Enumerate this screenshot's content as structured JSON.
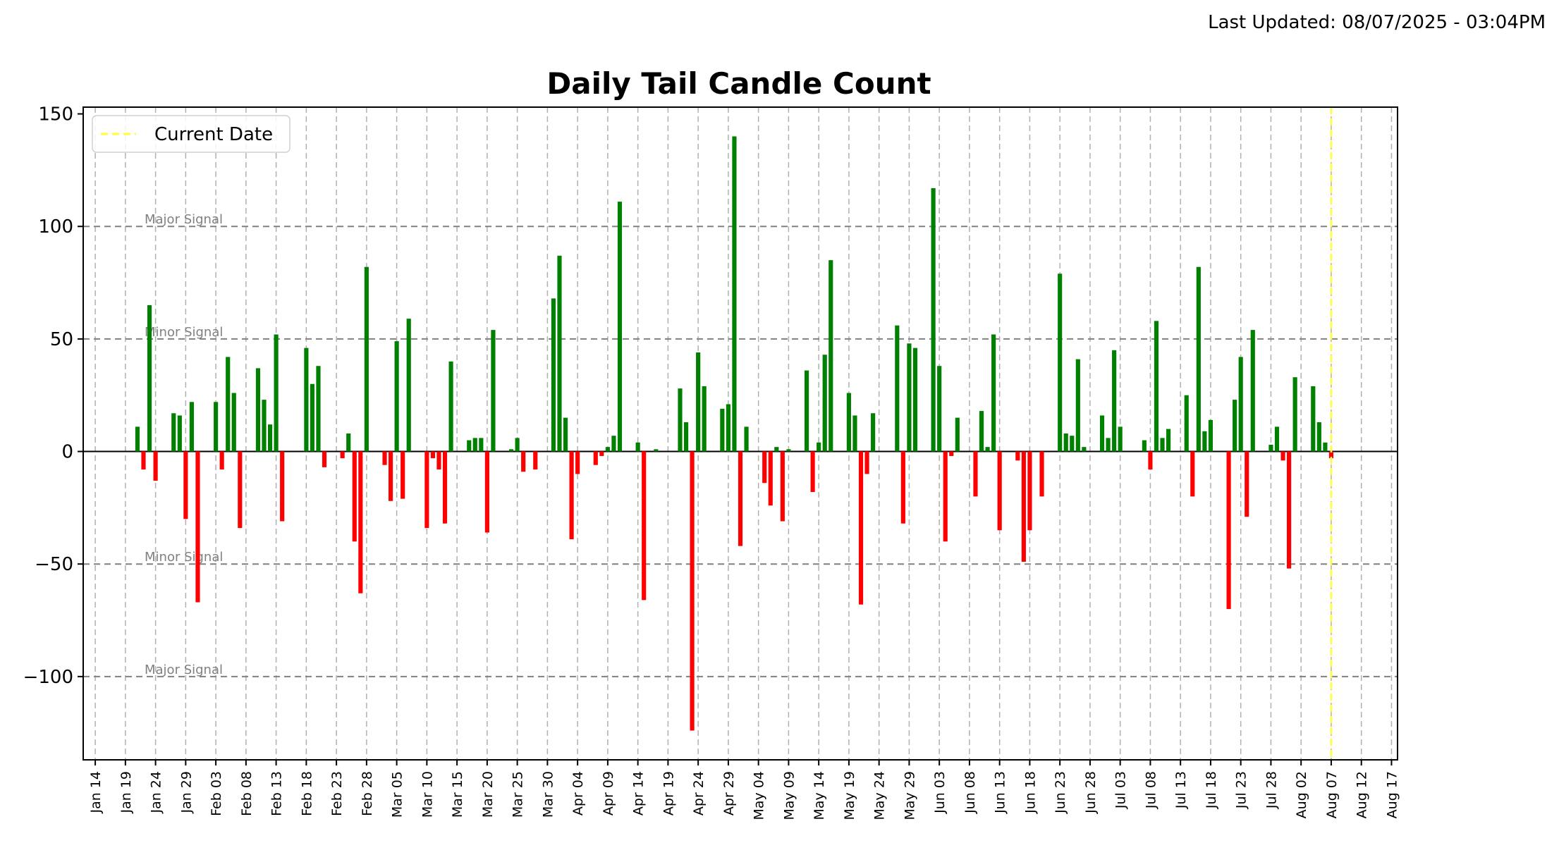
{
  "header": {
    "last_updated": "Last Updated: 08/07/2025 - 03:04PM"
  },
  "chart_data": {
    "type": "bar",
    "title": "Daily Tail Candle Count",
    "xlabel": "",
    "ylabel": "",
    "x_is_date": true,
    "year": 2025,
    "xlim": [
      "2025-01-12",
      "2025-08-18"
    ],
    "ylim": [
      -137,
      153
    ],
    "yticks": [
      -100,
      -50,
      0,
      50,
      100,
      150
    ],
    "xticks": [
      "Jan 14",
      "Jan 19",
      "Jan 24",
      "Jan 29",
      "Feb 03",
      "Feb 08",
      "Feb 13",
      "Feb 18",
      "Feb 23",
      "Feb 28",
      "Mar 05",
      "Mar 10",
      "Mar 15",
      "Mar 20",
      "Mar 25",
      "Mar 30",
      "Apr 04",
      "Apr 09",
      "Apr 14",
      "Apr 19",
      "Apr 24",
      "Apr 29",
      "May 04",
      "May 09",
      "May 14",
      "May 19",
      "May 24",
      "May 29",
      "Jun 03",
      "Jun 08",
      "Jun 13",
      "Jun 18",
      "Jun 23",
      "Jun 28",
      "Jul 03",
      "Jul 08",
      "Jul 13",
      "Jul 18",
      "Jul 23",
      "Jul 28",
      "Aug 02",
      "Aug 07",
      "Aug 12",
      "Aug 17"
    ],
    "grid": {
      "x": true,
      "y": false
    },
    "legend": {
      "position": "top-left",
      "entries": [
        "Current Date"
      ]
    },
    "colors": {
      "positive": "#008000",
      "negative": "#ff0000",
      "current_date": "#ffff33",
      "reference": "#808080"
    },
    "reference_lines": [
      {
        "y": 100,
        "label": "Major Signal"
      },
      {
        "y": 50,
        "label": "Minor Signal"
      },
      {
        "y": -50,
        "label": "Minor Signal"
      },
      {
        "y": -100,
        "label": "Major Signal"
      }
    ],
    "current_date": "2025-08-07",
    "series": [
      {
        "points": [
          {
            "x": "2025-01-21",
            "y": 11
          },
          {
            "x": "2025-01-22",
            "y": -8
          },
          {
            "x": "2025-01-23",
            "y": 65
          },
          {
            "x": "2025-01-24",
            "y": -13
          },
          {
            "x": "2025-01-27",
            "y": 17
          },
          {
            "x": "2025-01-28",
            "y": 16
          },
          {
            "x": "2025-01-29",
            "y": -30
          },
          {
            "x": "2025-01-30",
            "y": 22
          },
          {
            "x": "2025-01-31",
            "y": -67
          },
          {
            "x": "2025-02-03",
            "y": 22
          },
          {
            "x": "2025-02-04",
            "y": -8
          },
          {
            "x": "2025-02-05",
            "y": 42
          },
          {
            "x": "2025-02-06",
            "y": 26
          },
          {
            "x": "2025-02-07",
            "y": -34
          },
          {
            "x": "2025-02-10",
            "y": 37
          },
          {
            "x": "2025-02-11",
            "y": 23
          },
          {
            "x": "2025-02-12",
            "y": 12
          },
          {
            "x": "2025-02-13",
            "y": 52
          },
          {
            "x": "2025-02-14",
            "y": -31
          },
          {
            "x": "2025-02-18",
            "y": 46
          },
          {
            "x": "2025-02-19",
            "y": 30
          },
          {
            "x": "2025-02-20",
            "y": 38
          },
          {
            "x": "2025-02-21",
            "y": -7
          },
          {
            "x": "2025-02-24",
            "y": -3
          },
          {
            "x": "2025-02-25",
            "y": 8
          },
          {
            "x": "2025-02-26",
            "y": -40
          },
          {
            "x": "2025-02-27",
            "y": -63
          },
          {
            "x": "2025-02-28",
            "y": 82
          },
          {
            "x": "2025-03-03",
            "y": -6
          },
          {
            "x": "2025-03-04",
            "y": -22
          },
          {
            "x": "2025-03-05",
            "y": 49
          },
          {
            "x": "2025-03-06",
            "y": -21
          },
          {
            "x": "2025-03-07",
            "y": 59
          },
          {
            "x": "2025-03-10",
            "y": -34
          },
          {
            "x": "2025-03-11",
            "y": -3
          },
          {
            "x": "2025-03-12",
            "y": -8
          },
          {
            "x": "2025-03-13",
            "y": -32
          },
          {
            "x": "2025-03-14",
            "y": 40
          },
          {
            "x": "2025-03-17",
            "y": 5
          },
          {
            "x": "2025-03-18",
            "y": 6
          },
          {
            "x": "2025-03-19",
            "y": 6
          },
          {
            "x": "2025-03-20",
            "y": -36
          },
          {
            "x": "2025-03-21",
            "y": 54
          },
          {
            "x": "2025-03-24",
            "y": 1
          },
          {
            "x": "2025-03-25",
            "y": 6
          },
          {
            "x": "2025-03-26",
            "y": -9
          },
          {
            "x": "2025-03-28",
            "y": -8
          },
          {
            "x": "2025-03-31",
            "y": 68
          },
          {
            "x": "2025-04-01",
            "y": 87
          },
          {
            "x": "2025-04-02",
            "y": 15
          },
          {
            "x": "2025-04-03",
            "y": -39
          },
          {
            "x": "2025-04-04",
            "y": -10
          },
          {
            "x": "2025-04-07",
            "y": -6
          },
          {
            "x": "2025-04-08",
            "y": -2
          },
          {
            "x": "2025-04-09",
            "y": 2
          },
          {
            "x": "2025-04-10",
            "y": 7
          },
          {
            "x": "2025-04-11",
            "y": 111
          },
          {
            "x": "2025-04-14",
            "y": 4
          },
          {
            "x": "2025-04-15",
            "y": -66
          },
          {
            "x": "2025-04-17",
            "y": 1
          },
          {
            "x": "2025-04-21",
            "y": 28
          },
          {
            "x": "2025-04-22",
            "y": 13
          },
          {
            "x": "2025-04-23",
            "y": -124
          },
          {
            "x": "2025-04-24",
            "y": 44
          },
          {
            "x": "2025-04-25",
            "y": 29
          },
          {
            "x": "2025-04-28",
            "y": 19
          },
          {
            "x": "2025-04-29",
            "y": 21
          },
          {
            "x": "2025-04-30",
            "y": 140
          },
          {
            "x": "2025-05-01",
            "y": -42
          },
          {
            "x": "2025-05-02",
            "y": 11
          },
          {
            "x": "2025-05-05",
            "y": -14
          },
          {
            "x": "2025-05-06",
            "y": -24
          },
          {
            "x": "2025-05-07",
            "y": 2
          },
          {
            "x": "2025-05-08",
            "y": -31
          },
          {
            "x": "2025-05-09",
            "y": 1
          },
          {
            "x": "2025-05-12",
            "y": 36
          },
          {
            "x": "2025-05-13",
            "y": -18
          },
          {
            "x": "2025-05-14",
            "y": 4
          },
          {
            "x": "2025-05-15",
            "y": 43
          },
          {
            "x": "2025-05-16",
            "y": 85
          },
          {
            "x": "2025-05-19",
            "y": 26
          },
          {
            "x": "2025-05-20",
            "y": 16
          },
          {
            "x": "2025-05-21",
            "y": -68
          },
          {
            "x": "2025-05-22",
            "y": -10
          },
          {
            "x": "2025-05-23",
            "y": 17
          },
          {
            "x": "2025-05-27",
            "y": 56
          },
          {
            "x": "2025-05-28",
            "y": -32
          },
          {
            "x": "2025-05-29",
            "y": 48
          },
          {
            "x": "2025-05-30",
            "y": 46
          },
          {
            "x": "2025-06-02",
            "y": 117
          },
          {
            "x": "2025-06-03",
            "y": 38
          },
          {
            "x": "2025-06-04",
            "y": -40
          },
          {
            "x": "2025-06-05",
            "y": -2
          },
          {
            "x": "2025-06-06",
            "y": 15
          },
          {
            "x": "2025-06-09",
            "y": -20
          },
          {
            "x": "2025-06-10",
            "y": 18
          },
          {
            "x": "2025-06-11",
            "y": 2
          },
          {
            "x": "2025-06-12",
            "y": 52
          },
          {
            "x": "2025-06-13",
            "y": -35
          },
          {
            "x": "2025-06-16",
            "y": -4
          },
          {
            "x": "2025-06-17",
            "y": -49
          },
          {
            "x": "2025-06-18",
            "y": -35
          },
          {
            "x": "2025-06-20",
            "y": -20
          },
          {
            "x": "2025-06-23",
            "y": 79
          },
          {
            "x": "2025-06-24",
            "y": 8
          },
          {
            "x": "2025-06-25",
            "y": 7
          },
          {
            "x": "2025-06-26",
            "y": 41
          },
          {
            "x": "2025-06-27",
            "y": 2
          },
          {
            "x": "2025-06-30",
            "y": 16
          },
          {
            "x": "2025-07-01",
            "y": 6
          },
          {
            "x": "2025-07-02",
            "y": 45
          },
          {
            "x": "2025-07-03",
            "y": 11
          },
          {
            "x": "2025-07-07",
            "y": 5
          },
          {
            "x": "2025-07-08",
            "y": -8
          },
          {
            "x": "2025-07-09",
            "y": 58
          },
          {
            "x": "2025-07-10",
            "y": 6
          },
          {
            "x": "2025-07-11",
            "y": 10
          },
          {
            "x": "2025-07-14",
            "y": 25
          },
          {
            "x": "2025-07-15",
            "y": -20
          },
          {
            "x": "2025-07-16",
            "y": 82
          },
          {
            "x": "2025-07-17",
            "y": 9
          },
          {
            "x": "2025-07-18",
            "y": 14
          },
          {
            "x": "2025-07-21",
            "y": -70
          },
          {
            "x": "2025-07-22",
            "y": 23
          },
          {
            "x": "2025-07-23",
            "y": 42
          },
          {
            "x": "2025-07-24",
            "y": -29
          },
          {
            "x": "2025-07-25",
            "y": 54
          },
          {
            "x": "2025-07-28",
            "y": 3
          },
          {
            "x": "2025-07-29",
            "y": 11
          },
          {
            "x": "2025-07-30",
            "y": -4
          },
          {
            "x": "2025-07-31",
            "y": -52
          },
          {
            "x": "2025-08-01",
            "y": 33
          },
          {
            "x": "2025-08-04",
            "y": 29
          },
          {
            "x": "2025-08-05",
            "y": 13
          },
          {
            "x": "2025-08-06",
            "y": 4
          },
          {
            "x": "2025-08-07",
            "y": -3
          }
        ]
      }
    ]
  }
}
